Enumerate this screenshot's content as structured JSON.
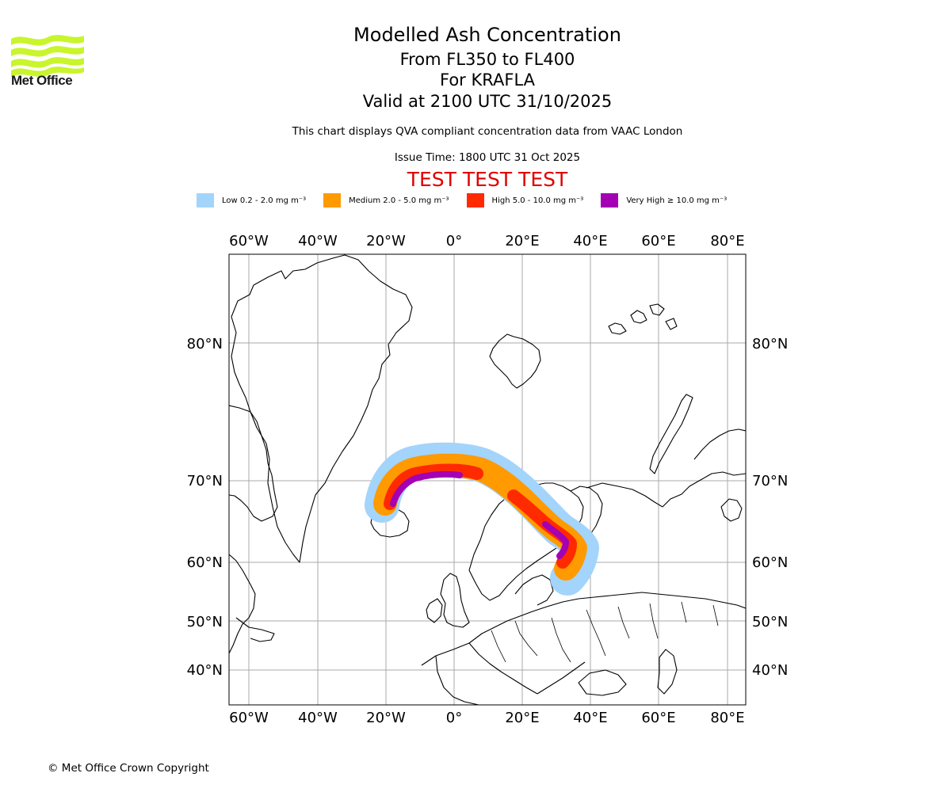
{
  "branding": {
    "name": "Met Office",
    "logo": "met-office-wave-logo",
    "logo_color": "#c8f52b"
  },
  "title": {
    "main": "Modelled Ash Concentration",
    "levels": "From FL350 to FL400",
    "volcano": "For KRAFLA",
    "valid": "Valid at 2100 UTC 31/10/2025"
  },
  "description": "This chart displays QVA compliant concentration data from VAAC London",
  "issue_time": "Issue Time: 1800 UTC 31 Oct 2025",
  "test_banner": "TEST TEST TEST",
  "legend": [
    {
      "label": "Low 0.2 - 2.0 mg m⁻³",
      "color": "#a3d4fb"
    },
    {
      "label": "Medium 2.0 - 5.0 mg m⁻³",
      "color": "#ff9a00"
    },
    {
      "label": "High 5.0 - 10.0 mg m⁻³",
      "color": "#ff2a00"
    },
    {
      "label": "Very High  ≥  10.0 mg m⁻³",
      "color": "#a400b4"
    }
  ],
  "map": {
    "lon_ticks": [
      "60°W",
      "40°W",
      "20°W",
      "0°",
      "20°E",
      "40°E",
      "60°E",
      "80°E"
    ],
    "lat_ticks": [
      "80°N",
      "70°N",
      "60°N",
      "50°N",
      "40°N"
    ],
    "grid_color": "#aaaaaa",
    "coast_color": "#000000"
  },
  "copyright": "© Met Office Crown Copyright"
}
